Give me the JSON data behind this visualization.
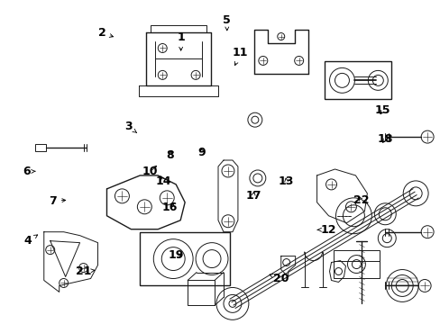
{
  "bg_color": "#ffffff",
  "line_color": "#1a1a1a",
  "fig_width": 4.89,
  "fig_height": 3.6,
  "dpi": 100,
  "label_fontsize": 9,
  "label_fontweight": "bold",
  "label_configs": {
    "1": [
      0.41,
      0.115,
      0.41,
      0.165
    ],
    "2": [
      0.23,
      0.1,
      0.263,
      0.115
    ],
    "3": [
      0.29,
      0.39,
      0.31,
      0.41
    ],
    "4": [
      0.062,
      0.745,
      0.09,
      0.72
    ],
    "5": [
      0.515,
      0.062,
      0.515,
      0.095
    ],
    "6": [
      0.058,
      0.53,
      0.085,
      0.528
    ],
    "7": [
      0.118,
      0.62,
      0.155,
      0.618
    ],
    "8": [
      0.385,
      0.48,
      0.39,
      0.455
    ],
    "9": [
      0.458,
      0.47,
      0.455,
      0.448
    ],
    "10": [
      0.34,
      0.53,
      0.36,
      0.505
    ],
    "11": [
      0.545,
      0.162,
      0.53,
      0.21
    ],
    "12": [
      0.745,
      0.71,
      0.72,
      0.71
    ],
    "13": [
      0.65,
      0.56,
      0.648,
      0.54
    ],
    "14": [
      0.37,
      0.56,
      0.36,
      0.535
    ],
    "15": [
      0.87,
      0.34,
      0.86,
      0.36
    ],
    "16": [
      0.385,
      0.64,
      0.4,
      0.62
    ],
    "17": [
      0.575,
      0.605,
      0.578,
      0.582
    ],
    "18": [
      0.875,
      0.43,
      0.865,
      0.448
    ],
    "19": [
      0.398,
      0.79,
      0.42,
      0.788
    ],
    "20": [
      0.638,
      0.862,
      0.61,
      0.848
    ],
    "21": [
      0.188,
      0.84,
      0.215,
      0.835
    ],
    "22": [
      0.82,
      0.618,
      0.81,
      0.6
    ]
  }
}
